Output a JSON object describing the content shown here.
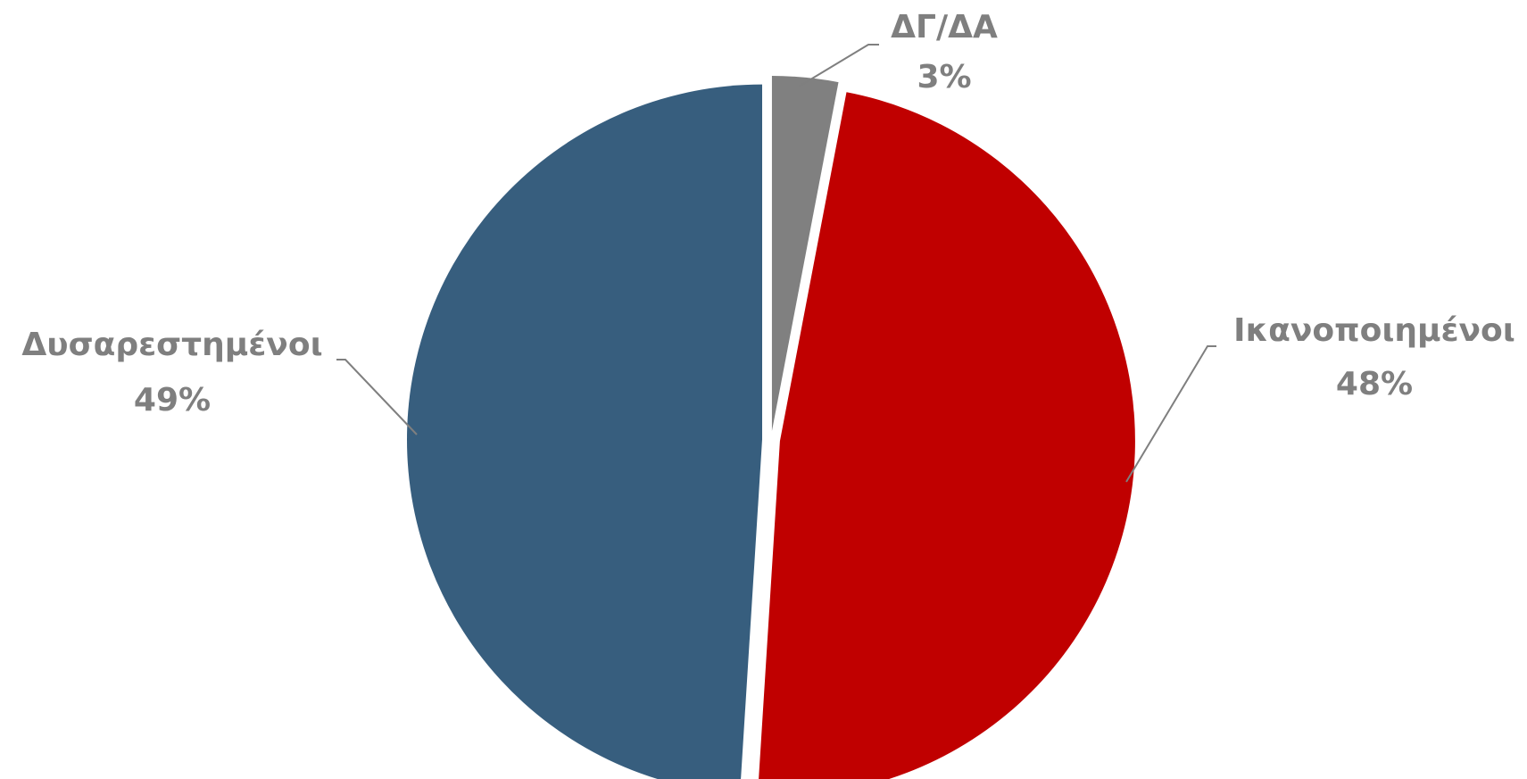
{
  "chart_data": {
    "type": "pie",
    "categories": [
      "ΔΓ/ΔΑ",
      "Ικανοποιημένοι",
      "Δυσαρεστημένοι"
    ],
    "values": [
      3,
      48,
      49
    ],
    "value_labels": [
      "3%",
      "48%",
      "49%"
    ],
    "colors": [
      "#808080",
      "#c00000",
      "#375e7e"
    ],
    "start_angle": 0,
    "direction": "clockwise",
    "exploded": true
  }
}
